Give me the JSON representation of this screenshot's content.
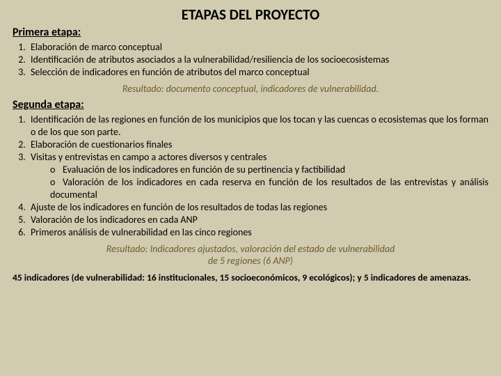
{
  "title": "ETAPAS DEL PROYECTO",
  "stage1": {
    "heading": "Primera etapa:",
    "items": [
      "Elaboración de marco conceptual",
      "Identificación de atributos asociados a la vulnerabilidad/resiliencia de los socioecosistemas",
      "Selección de indicadores en función de atributos del marco conceptual"
    ],
    "result": "Resultado: documento conceptual, indicadores de vulnerabilidad."
  },
  "stage2": {
    "heading": "Segunda etapa:",
    "items": [
      "Identificación de las regiones en función de los municipios que los tocan y las cuencas o ecosistemas que los forman o de los que son parte.",
      "Elaboración de cuestionarios finales",
      "Visitas y entrevistas en campo a actores diversos y centrales",
      "Ajuste de los indicadores en función de los resultados de todas las regiones",
      "Valoración de los indicadores en cada ANP",
      "Primeros análisis de vulnerabilidad en las cinco regiones"
    ],
    "subitems": [
      "Evaluación de los indicadores en función de su pertinencia y factibilidad",
      "Valoración de los indicadores en cada reserva en función de los resultados de las entrevistas y análisis documental"
    ],
    "result1": "Resultado: Indicadores ajustados, valoración del estado de vulnerabilidad",
    "result2": "de 5 regiones (6 ANP)"
  },
  "footnote": "45 indicadores (de vulnerabilidad: 16 institucionales, 15 socioeconómicos,  9 ecológicos); y 5 indicadores de amenazas.",
  "colors": {
    "background": "#d1cbb0",
    "text": "#000000",
    "result_text": "#6f5b2a"
  },
  "fontsize": {
    "title": 21,
    "stage": 16,
    "body": 14
  }
}
